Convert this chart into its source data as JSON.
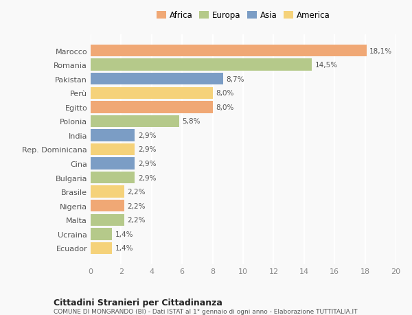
{
  "countries": [
    "Marocco",
    "Romania",
    "Pakistan",
    "Perù",
    "Egitto",
    "Polonia",
    "India",
    "Rep. Dominicana",
    "Cina",
    "Bulgaria",
    "Brasile",
    "Nigeria",
    "Malta",
    "Ucraina",
    "Ecuador"
  ],
  "values": [
    18.1,
    14.5,
    8.7,
    8.0,
    8.0,
    5.8,
    2.9,
    2.9,
    2.9,
    2.9,
    2.2,
    2.2,
    2.2,
    1.4,
    1.4
  ],
  "labels": [
    "18,1%",
    "14,5%",
    "8,7%",
    "8,0%",
    "8,0%",
    "5,8%",
    "2,9%",
    "2,9%",
    "2,9%",
    "2,9%",
    "2,2%",
    "2,2%",
    "2,2%",
    "1,4%",
    "1,4%"
  ],
  "continents": [
    "Africa",
    "Europa",
    "Asia",
    "America",
    "Africa",
    "Europa",
    "Asia",
    "America",
    "Asia",
    "Europa",
    "America",
    "Africa",
    "Europa",
    "Europa",
    "America"
  ],
  "colors": {
    "Africa": "#F0A875",
    "Europa": "#B5C98A",
    "Asia": "#7B9DC5",
    "America": "#F5D27A"
  },
  "legend_order": [
    "Africa",
    "Europa",
    "Asia",
    "America"
  ],
  "xlim": [
    0,
    20
  ],
  "xticks": [
    0,
    2,
    4,
    6,
    8,
    10,
    12,
    14,
    16,
    18,
    20
  ],
  "title": "Cittadini Stranieri per Cittadinanza",
  "subtitle": "COMUNE DI MONGRANDO (BI) - Dati ISTAT al 1° gennaio di ogni anno - Elaborazione TUTTITALIA.IT",
  "background_color": "#f9f9f9",
  "grid_color": "#ffffff",
  "bar_height": 0.85
}
